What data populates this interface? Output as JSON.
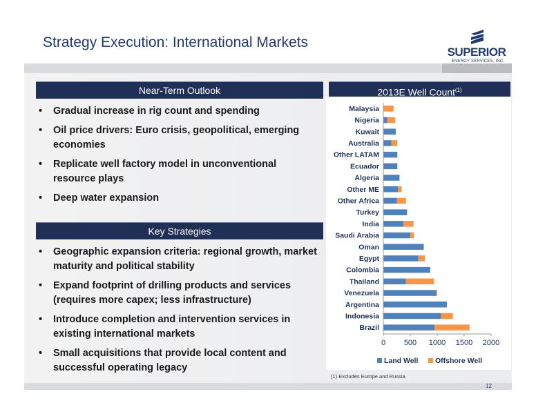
{
  "slide": {
    "title": "Strategy Execution: International Markets",
    "page_number": "12",
    "footnote": "(1)    Excludes Europe and Russia."
  },
  "logo": {
    "name": "SUPERIOR",
    "tagline": "ENERGY SERVICES, INC.",
    "color": "#1f3a6e"
  },
  "near_term": {
    "heading": "Near-Term Outlook",
    "bullets": [
      "Gradual increase in rig count and spending",
      "Oil price drivers: Euro crisis, geopolitical, emerging economies",
      "Replicate well factory model in unconventional resource plays",
      "Deep water expansion"
    ]
  },
  "key_strategies": {
    "heading": "Key Strategies",
    "bullets": [
      "Geographic expansion criteria: regional growth, market maturity and political stability",
      "Expand footprint of drilling products and services (requires more capex; less infrastructure)",
      "Introduce completion and intervention services in existing international markets",
      "Small acquisitions that provide local content and successful operating legacy"
    ]
  },
  "chart_header": {
    "title": "2013E Well Count",
    "superscript": "(1)"
  },
  "chart_data": {
    "type": "bar",
    "orientation": "horizontal",
    "stacked": true,
    "title": "2013E Well Count",
    "categories": [
      "Malaysia",
      "Nigeria",
      "Kuwait",
      "Australia",
      "Other LATAM",
      "Ecuador",
      "Algeria",
      "Other ME",
      "Other Africa",
      "Turkey",
      "India",
      "Saudi Arabia",
      "Oman",
      "Egypt",
      "Colombia",
      "Thailand",
      "Venezuela",
      "Argentina",
      "Indonesia",
      "Brazil"
    ],
    "series": [
      {
        "name": "Land Well",
        "color": "#4f81bd",
        "values": [
          0,
          70,
          230,
          150,
          260,
          260,
          300,
          270,
          250,
          440,
          370,
          500,
          750,
          650,
          870,
          420,
          980,
          1180,
          1070,
          950
        ]
      },
      {
        "name": "Offshore Well",
        "color": "#f79646",
        "values": [
          190,
          150,
          0,
          110,
          0,
          0,
          0,
          70,
          170,
          0,
          190,
          70,
          0,
          120,
          0,
          520,
          20,
          0,
          220,
          650
        ]
      }
    ],
    "xlim": [
      0,
      2000
    ],
    "x_ticks": [
      "0",
      "500",
      "1000",
      "1500",
      "2000"
    ],
    "legend_position": "bottom",
    "grid": false
  }
}
